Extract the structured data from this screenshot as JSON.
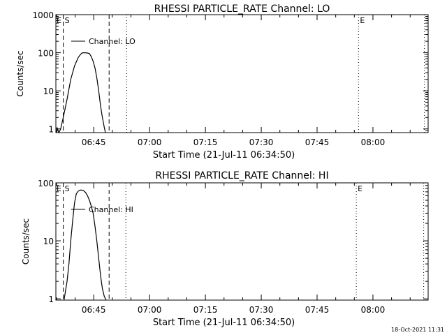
{
  "footer_timestamp": "18-Oct-2021 11:31",
  "chart_data": [
    {
      "type": "line",
      "title": "RHESSI PARTICLE_RATE Channel: LO",
      "xlabel": "Start Time (21-Jul-11 06:34:50)",
      "ylabel": "Counts/sec",
      "y_scale": "log",
      "ylim": [
        0.8,
        1000
      ],
      "x_unit": "minutes since 06:34:50",
      "xlim": [
        0,
        100
      ],
      "x_ticks": [
        {
          "value": 10.17,
          "label": "06:45"
        },
        {
          "value": 25.17,
          "label": "07:00"
        },
        {
          "value": 40.17,
          "label": "07:15"
        },
        {
          "value": 55.17,
          "label": "07:30"
        },
        {
          "value": 70.17,
          "label": "07:45"
        },
        {
          "value": 85.17,
          "label": "08:00"
        }
      ],
      "y_ticks": [
        {
          "value": 1,
          "label": "1"
        },
        {
          "value": 10,
          "label": "10"
        },
        {
          "value": 100,
          "label": "100"
        },
        {
          "value": 1000,
          "label": "1000"
        }
      ],
      "legend": {
        "label": "Channel: LO",
        "position": "top-left"
      },
      "vlines": [
        {
          "x": 2.0,
          "style": "dashed",
          "label": "S"
        },
        {
          "x": 14.3,
          "style": "dashed",
          "label": ""
        },
        {
          "x": 19.0,
          "style": "dotted",
          "label": ""
        },
        {
          "x": 81.3,
          "style": "dotted",
          "label": "E"
        },
        {
          "x": 99.0,
          "style": "dotted",
          "label": ""
        }
      ],
      "corner_label": "E",
      "series": [
        {
          "x": [
            0.2,
            0.3,
            0.8,
            1.3,
            2.2,
            3.0,
            4.0,
            5.0,
            6.0,
            6.6,
            7.0,
            7.5,
            8.0,
            8.5,
            9.0,
            9.5,
            10.0,
            10.5,
            11.0,
            11.5,
            12.0,
            12.5,
            13.0,
            13.3
          ],
          "y": [
            0.8,
            1.1,
            0.8,
            1.0,
            2.5,
            6.0,
            20,
            45,
            75,
            90,
            98,
            100,
            100,
            98,
            95,
            80,
            60,
            40,
            22,
            10,
            4,
            2,
            1.1,
            0.8
          ]
        }
      ]
    },
    {
      "type": "line",
      "title": "RHESSI PARTICLE_RATE Channel: HI",
      "xlabel": "Start Time (21-Jul-11 06:34:50)",
      "ylabel": "Counts/sec",
      "y_scale": "log",
      "ylim": [
        0.95,
        100
      ],
      "x_unit": "minutes since 06:34:50",
      "xlim": [
        0,
        100
      ],
      "x_ticks": [
        {
          "value": 10.17,
          "label": "06:45"
        },
        {
          "value": 25.17,
          "label": "07:00"
        },
        {
          "value": 40.17,
          "label": "07:15"
        },
        {
          "value": 55.17,
          "label": "07:30"
        },
        {
          "value": 70.17,
          "label": "07:45"
        },
        {
          "value": 85.17,
          "label": "08:00"
        }
      ],
      "y_ticks": [
        {
          "value": 1,
          "label": "1"
        },
        {
          "value": 10,
          "label": "10"
        },
        {
          "value": 100,
          "label": "100"
        }
      ],
      "legend": {
        "label": "Channel: HI",
        "position": "top-left"
      },
      "vlines": [
        {
          "x": 2.0,
          "style": "dashed",
          "label": "S"
        },
        {
          "x": 14.3,
          "style": "dashed",
          "label": ""
        },
        {
          "x": 18.8,
          "style": "dotted",
          "label": ""
        },
        {
          "x": 80.7,
          "style": "dotted",
          "label": "E"
        },
        {
          "x": 98.8,
          "style": "dotted",
          "label": ""
        }
      ],
      "corner_label": "E",
      "series": [
        {
          "x": [
            2.2,
            3.0,
            3.5,
            4.0,
            4.5,
            5.0,
            5.5,
            6.0,
            6.5,
            7.0,
            7.5,
            8.0,
            8.5,
            9.0,
            9.5,
            10.0,
            10.5,
            11.0,
            11.5,
            12.0,
            12.5,
            13.0,
            13.5
          ],
          "y": [
            0.95,
            2,
            4,
            10,
            22,
            45,
            65,
            72,
            75,
            75,
            73,
            68,
            60,
            50,
            40,
            30,
            18,
            10,
            5,
            2.5,
            1.5,
            1.1,
            0.95
          ]
        }
      ]
    }
  ]
}
